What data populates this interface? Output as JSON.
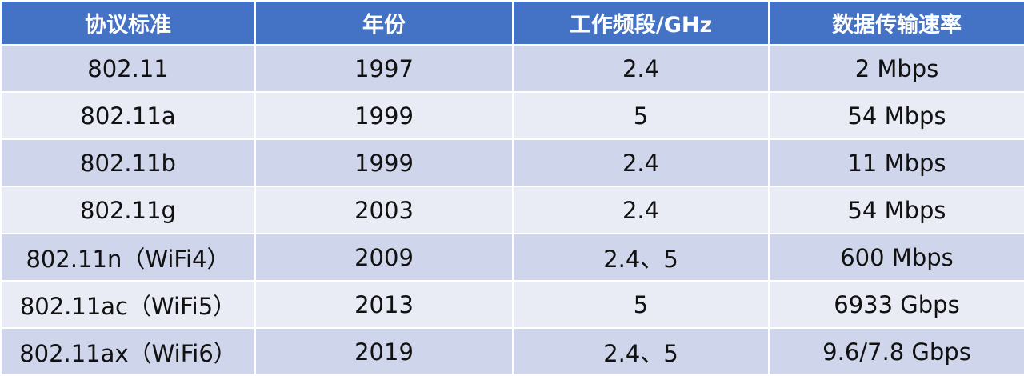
{
  "table": {
    "header": [
      "协议标准",
      "年份",
      "工作频段/GHz",
      "数据传输速率"
    ],
    "rows": [
      [
        "802.11",
        "1997",
        "2.4",
        "2 Mbps"
      ],
      [
        "802.11a",
        "1999",
        "5",
        "54 Mbps"
      ],
      [
        "802.11b",
        "1999",
        "2.4",
        "11 Mbps"
      ],
      [
        "802.11g",
        "2003",
        "2.4",
        "54 Mbps"
      ],
      [
        "802.11n（WiFi4）",
        "2009",
        "2.4、5",
        "600 Mbps"
      ],
      [
        "802.11ac（WiFi5）",
        "2013",
        "5",
        "6933 Gbps"
      ],
      [
        "802.11ax（WiFi6）",
        "2019",
        "2.4、5",
        "9.6/7.8 Gbps"
      ]
    ]
  }
}
